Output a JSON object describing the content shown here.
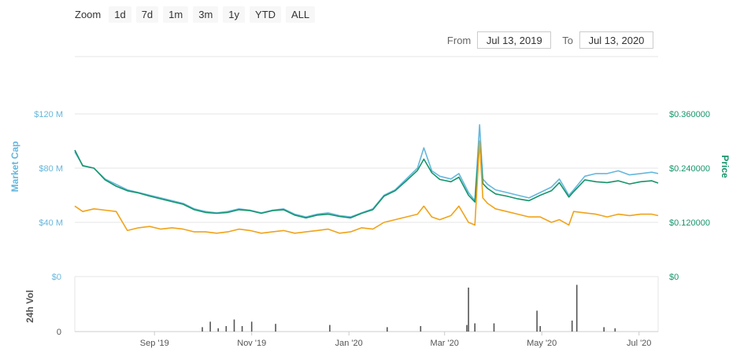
{
  "zoom": {
    "label": "Zoom",
    "buttons": [
      "1d",
      "7d",
      "1m",
      "3m",
      "1y",
      "YTD",
      "ALL"
    ]
  },
  "range": {
    "from_label": "From",
    "from_value": "Jul 13, 2019",
    "to_label": "To",
    "to_value": "Jul 13, 2020"
  },
  "colors": {
    "market_cap": "#65b7dd",
    "price": "#16956b",
    "volume_line": "#f0a31a",
    "volume_bar": "#555555",
    "left_axis_text": "#65b7dd",
    "right_axis_text": "#16956b"
  },
  "chart_data": {
    "type": "line",
    "title": "",
    "xlabel": "",
    "x_ticks": [
      "Sep '19",
      "Nov '19",
      "Jan '20",
      "Mar '20",
      "May '20",
      "Jul '20"
    ],
    "x_tick_dates": [
      "2019-09-01",
      "2019-11-01",
      "2020-01-01",
      "2020-03-01",
      "2020-05-01",
      "2020-07-01"
    ],
    "x_range": [
      "2019-07-13",
      "2020-07-13"
    ],
    "upper_panel": {
      "left_axis": {
        "label": "Market Cap",
        "ticks": [
          "$40 M",
          "$80 M",
          "$120 M"
        ],
        "tick_values": [
          40,
          80,
          120
        ],
        "range": [
          0,
          120
        ]
      },
      "right_axis": {
        "label": "Price",
        "ticks": [
          "$0.120000",
          "$0.240000",
          "$0.360000"
        ],
        "tick_values": [
          0.12,
          0.24,
          0.36
        ],
        "range": [
          0,
          0.36
        ]
      },
      "grid": true,
      "series": [
        {
          "name": "Market Cap",
          "axis": "left",
          "x": [
            "2019-07-13",
            "2019-07-18",
            "2019-07-25",
            "2019-08-01",
            "2019-08-08",
            "2019-08-15",
            "2019-08-22",
            "2019-08-29",
            "2019-09-05",
            "2019-09-12",
            "2019-09-19",
            "2019-09-26",
            "2019-10-03",
            "2019-10-10",
            "2019-10-17",
            "2019-10-24",
            "2019-10-31",
            "2019-11-07",
            "2019-11-14",
            "2019-11-21",
            "2019-11-28",
            "2019-12-05",
            "2019-12-12",
            "2019-12-19",
            "2019-12-26",
            "2020-01-02",
            "2020-01-09",
            "2020-01-16",
            "2020-01-23",
            "2020-01-30",
            "2020-02-06",
            "2020-02-13",
            "2020-02-17",
            "2020-02-22",
            "2020-02-27",
            "2020-03-05",
            "2020-03-10",
            "2020-03-16",
            "2020-03-20",
            "2020-03-23",
            "2020-03-25",
            "2020-03-28",
            "2020-04-02",
            "2020-04-09",
            "2020-04-16",
            "2020-04-23",
            "2020-04-30",
            "2020-05-07",
            "2020-05-12",
            "2020-05-18",
            "2020-05-21",
            "2020-05-28",
            "2020-06-04",
            "2020-06-11",
            "2020-06-18",
            "2020-06-25",
            "2020-07-02",
            "2020-07-09",
            "2020-07-13"
          ],
          "values": [
            92,
            82,
            80,
            72,
            68,
            64,
            62,
            60,
            58,
            56,
            54,
            50,
            48,
            47,
            48,
            50,
            49,
            47,
            49,
            50,
            46,
            44,
            46,
            47,
            45,
            44,
            47,
            50,
            60,
            64,
            72,
            80,
            95,
            78,
            74,
            72,
            76,
            62,
            56,
            112,
            72,
            68,
            64,
            62,
            60,
            58,
            62,
            66,
            72,
            60,
            64,
            74,
            76,
            76,
            78,
            75,
            76,
            77,
            76
          ]
        },
        {
          "name": "Price",
          "axis": "right",
          "x": [
            "2019-07-13",
            "2019-07-18",
            "2019-07-25",
            "2019-08-01",
            "2019-08-08",
            "2019-08-15",
            "2019-08-22",
            "2019-08-29",
            "2019-09-05",
            "2019-09-12",
            "2019-09-19",
            "2019-09-26",
            "2019-10-03",
            "2019-10-10",
            "2019-10-17",
            "2019-10-24",
            "2019-10-31",
            "2019-11-07",
            "2019-11-14",
            "2019-11-21",
            "2019-11-28",
            "2019-12-05",
            "2019-12-12",
            "2019-12-19",
            "2019-12-26",
            "2020-01-02",
            "2020-01-09",
            "2020-01-16",
            "2020-01-23",
            "2020-01-30",
            "2020-02-06",
            "2020-02-13",
            "2020-02-17",
            "2020-02-22",
            "2020-02-27",
            "2020-03-05",
            "2020-03-10",
            "2020-03-16",
            "2020-03-20",
            "2020-03-23",
            "2020-03-25",
            "2020-03-28",
            "2020-04-02",
            "2020-04-09",
            "2020-04-16",
            "2020-04-23",
            "2020-04-30",
            "2020-05-07",
            "2020-05-12",
            "2020-05-18",
            "2020-05-21",
            "2020-05-28",
            "2020-06-04",
            "2020-06-11",
            "2020-06-18",
            "2020-06-25",
            "2020-07-02",
            "2020-07-09",
            "2020-07-13"
          ],
          "values": [
            0.28,
            0.245,
            0.24,
            0.214,
            0.2,
            0.19,
            0.185,
            0.178,
            0.172,
            0.166,
            0.16,
            0.148,
            0.142,
            0.14,
            0.142,
            0.148,
            0.146,
            0.14,
            0.146,
            0.148,
            0.136,
            0.13,
            0.136,
            0.138,
            0.133,
            0.13,
            0.14,
            0.148,
            0.178,
            0.19,
            0.212,
            0.235,
            0.26,
            0.23,
            0.215,
            0.21,
            0.22,
            0.18,
            0.165,
            0.3,
            0.206,
            0.195,
            0.183,
            0.178,
            0.172,
            0.168,
            0.18,
            0.19,
            0.208,
            0.176,
            0.188,
            0.214,
            0.21,
            0.208,
            0.212,
            0.205,
            0.21,
            0.212,
            0.207
          ]
        },
        {
          "name": "Volume",
          "axis": "left",
          "x": [
            "2019-07-13",
            "2019-07-18",
            "2019-07-25",
            "2019-08-01",
            "2019-08-08",
            "2019-08-15",
            "2019-08-22",
            "2019-08-29",
            "2019-09-05",
            "2019-09-12",
            "2019-09-19",
            "2019-09-26",
            "2019-10-03",
            "2019-10-10",
            "2019-10-17",
            "2019-10-24",
            "2019-10-31",
            "2019-11-07",
            "2019-11-14",
            "2019-11-21",
            "2019-11-28",
            "2019-12-05",
            "2019-12-12",
            "2019-12-19",
            "2019-12-26",
            "2020-01-02",
            "2020-01-09",
            "2020-01-16",
            "2020-01-23",
            "2020-01-30",
            "2020-02-06",
            "2020-02-13",
            "2020-02-17",
            "2020-02-22",
            "2020-02-27",
            "2020-03-05",
            "2020-03-10",
            "2020-03-16",
            "2020-03-20",
            "2020-03-23",
            "2020-03-25",
            "2020-03-28",
            "2020-04-02",
            "2020-04-09",
            "2020-04-16",
            "2020-04-23",
            "2020-04-30",
            "2020-05-07",
            "2020-05-12",
            "2020-05-18",
            "2020-05-21",
            "2020-05-28",
            "2020-06-04",
            "2020-06-11",
            "2020-06-18",
            "2020-06-25",
            "2020-07-02",
            "2020-07-09",
            "2020-07-13"
          ],
          "values": [
            52,
            48,
            50,
            49,
            48,
            34,
            36,
            37,
            35,
            36,
            35,
            33,
            33,
            32,
            33,
            35,
            34,
            32,
            33,
            34,
            32,
            33,
            34,
            35,
            32,
            33,
            36,
            35,
            40,
            42,
            44,
            46,
            52,
            44,
            42,
            45,
            52,
            40,
            38,
            100,
            58,
            54,
            50,
            48,
            46,
            44,
            44,
            40,
            42,
            38,
            48,
            47,
            46,
            44,
            46,
            45,
            46,
            46,
            45
          ]
        }
      ]
    },
    "lower_panel": {
      "label": "24h Vol",
      "ticks": [
        "0",
        "$0"
      ],
      "right_ticks": [
        "$0"
      ],
      "type": "bar",
      "x": [
        "2019-10-01",
        "2019-10-06",
        "2019-10-11",
        "2019-10-16",
        "2019-10-21",
        "2019-10-26",
        "2019-11-01",
        "2019-11-16",
        "2019-12-20",
        "2020-01-25",
        "2020-02-15",
        "2020-03-15",
        "2020-03-16",
        "2020-03-20",
        "2020-04-01",
        "2020-04-28",
        "2020-04-30",
        "2020-05-20",
        "2020-05-23",
        "2020-06-09",
        "2020-06-16"
      ],
      "values": [
        0.08,
        0.18,
        0.06,
        0.1,
        0.22,
        0.1,
        0.18,
        0.14,
        0.12,
        0.08,
        0.1,
        0.12,
        0.8,
        0.15,
        0.15,
        0.38,
        0.1,
        0.2,
        0.85,
        0.08,
        0.06
      ]
    }
  }
}
